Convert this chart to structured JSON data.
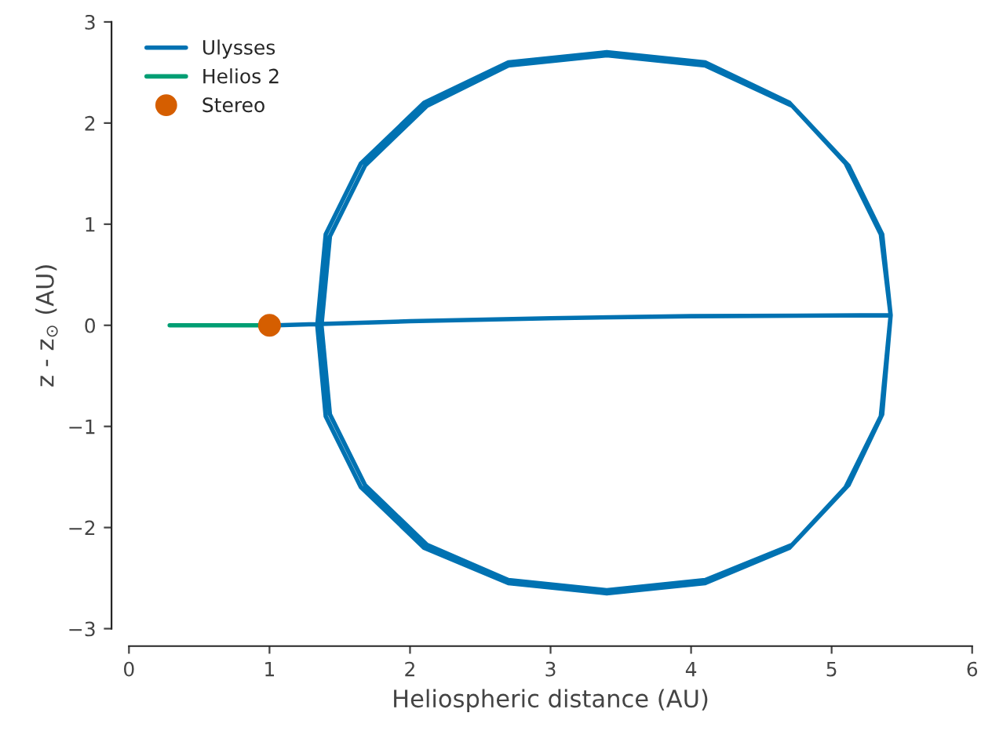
{
  "chart_data": {
    "type": "line",
    "xlabel": "Heliospheric distance (AU)",
    "ylabel": "z - z$_{⊙}$ (AU)",
    "xlim": [
      0,
      6
    ],
    "ylim": [
      -3,
      3
    ],
    "xticks": [
      0,
      1,
      2,
      3,
      4,
      5,
      6
    ],
    "yticks": [
      {
        "value": -3,
        "label": "−3"
      },
      {
        "value": -2,
        "label": "−2"
      },
      {
        "value": -1,
        "label": "−1"
      },
      0,
      1,
      2,
      3
    ],
    "legend": "top left",
    "grid": false,
    "series": [
      {
        "name": "Ulysses",
        "color": "#0072b2",
        "x": [
          1.05,
          2,
          3,
          4,
          5.42,
          5.35,
          5.1,
          4.7,
          4.1,
          3.4,
          2.7,
          2.1,
          1.65,
          1.4,
          1.34,
          1.4,
          1.65,
          2.1,
          2.7,
          3.4,
          4.1,
          4.7,
          5.1,
          5.35,
          5.42,
          5.36,
          5.12,
          4.72,
          4.1,
          3.4,
          2.7,
          2.12,
          1.68,
          1.43,
          1.37,
          1.43,
          1.68,
          2.12,
          2.7,
          3.4,
          4.1,
          4.72,
          5.12,
          5.36,
          5.42
        ],
        "values": [
          0.0,
          0.04,
          0.07,
          0.09,
          0.1,
          0.9,
          1.6,
          2.2,
          2.6,
          2.7,
          2.6,
          2.2,
          1.6,
          0.9,
          0.0,
          -0.9,
          -1.6,
          -2.2,
          -2.55,
          -2.65,
          -2.55,
          -2.2,
          -1.6,
          -0.9,
          0.1,
          0.9,
          1.58,
          2.17,
          2.57,
          2.67,
          2.57,
          2.17,
          1.58,
          0.88,
          0.0,
          -0.88,
          -1.58,
          -2.17,
          -2.52,
          -2.62,
          -2.52,
          -2.17,
          -1.58,
          -0.88,
          0.1
        ]
      },
      {
        "name": "Helios 2",
        "color": "#009e73",
        "x": [
          0.29,
          1.0
        ],
        "values": [
          0,
          0
        ]
      },
      {
        "name": "Stereo",
        "type": "scatter",
        "marker": "circle",
        "color": "#d55e00",
        "x": [
          1.0
        ],
        "values": [
          0
        ]
      }
    ]
  }
}
